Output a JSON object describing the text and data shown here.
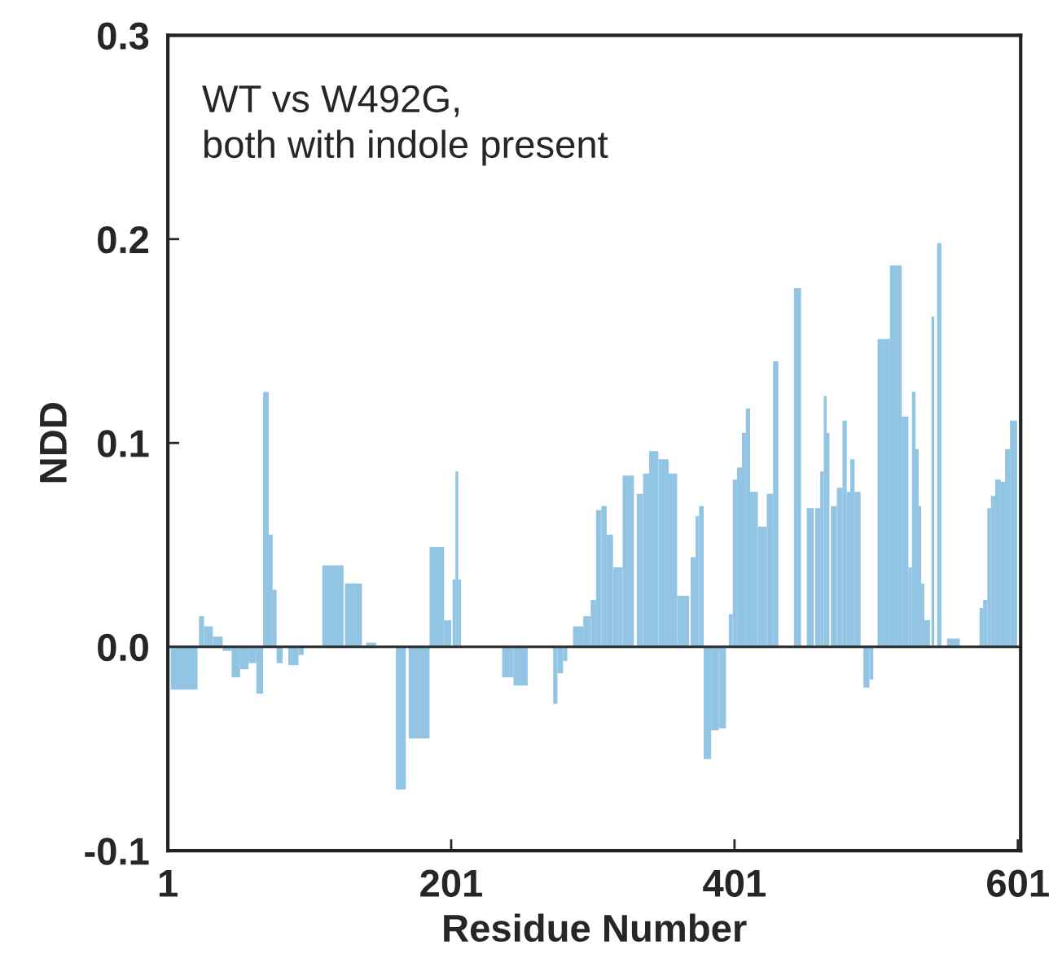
{
  "chart_data": {
    "type": "bar",
    "xlabel": "Residue Number",
    "ylabel": "NDD",
    "annotations": [
      "WT vs W492G,\nboth with indole present"
    ],
    "series": [
      {
        "color": "#92c5e3",
        "x": [
          12.5,
          22,
          23,
          24,
          29,
          36.5,
          43,
          49,
          55,
          61,
          66,
          70.5,
          74,
          76,
          79.5,
          82,
          86,
          90.5,
          96,
          97,
          110,
          117.5,
          125,
          126,
          132,
          138,
          141,
          144.5,
          148,
          162,
          165.5,
          169,
          171,
          179,
          192.5,
          199.5,
          201,
          202,
          203,
          205,
          207,
          208,
          237,
          240.5,
          249.5,
          255,
          273,
          274,
          278,
          282,
          283,
          287,
          291,
          297.5,
          301.5,
          305,
          309,
          312.5,
          318,
          326,
          330,
          332,
          334.5,
          338.5,
          343,
          351.5,
          357.5,
          363.5,
          369,
          370,
          372,
          375,
          377,
          381.5,
          387.5,
          392.5,
          395,
          397,
          398.5,
          401,
          404.5,
          408,
          410,
          414,
          421,
          426.5,
          430,
          432,
          443,
          445.5,
          448,
          452,
          454.5,
          457,
          458,
          460,
          463,
          465,
          467,
          468,
          469,
          471,
          475.5,
          479,
          481.5,
          484,
          487.5,
          490,
          492,
          494.5,
          498,
          499,
          502,
          506,
          515.5,
          522.5,
          525,
          527.5,
          530,
          532,
          533.5,
          536.5,
          539,
          540,
          541,
          542,
          544,
          545.5,
          547,
          551,
          555.5,
          560,
          574,
          575,
          578,
          581,
          583,
          587,
          591,
          593,
          598
        ],
        "values": [
          -0.021,
          null,
          null,
          0.015,
          0.01,
          0.005,
          -0.002,
          -0.015,
          -0.011,
          -0.008,
          -0.023,
          0.125,
          0.055,
          0.028,
          -0.008,
          null,
          null,
          -0.009,
          -0.004,
          null,
          null,
          0.04,
          null,
          null,
          0.031,
          null,
          null,
          0.002,
          null,
          null,
          -0.07,
          null,
          null,
          -0.045,
          0.049,
          0.013,
          null,
          null,
          0.033,
          0.086,
          0.033,
          null,
          null,
          -0.015,
          -0.019,
          null,
          null,
          -0.028,
          -0.013,
          -0.007,
          null,
          null,
          0.01,
          0.015,
          0.023,
          0.067,
          0.069,
          0.055,
          0.039,
          0.084,
          null,
          null,
          0.075,
          0.085,
          0.096,
          0.092,
          0.085,
          0.025,
          null,
          null,
          0.044,
          0.064,
          0.069,
          -0.055,
          -0.041,
          -0.04,
          null,
          null,
          0.016,
          0.082,
          0.088,
          0.105,
          0.117,
          0.076,
          0.059,
          0.075,
          0.14,
          null,
          null,
          0.176,
          null,
          null,
          0.068,
          null,
          null,
          0.068,
          0.086,
          0.123,
          0.105,
          null,
          null,
          0.069,
          0.078,
          0.111,
          0.076,
          0.092,
          0.076,
          null,
          null,
          -0.02,
          -0.016,
          null,
          null,
          0.151,
          0.187,
          0.113,
          0.039,
          0.125,
          0.097,
          0.069,
          0.031,
          0.013,
          null,
          null,
          0.162,
          null,
          null,
          0.198,
          null,
          null,
          0.004,
          null,
          null,
          0.019,
          0.023,
          0.068,
          0.074,
          0.082,
          0.081,
          0.097,
          0.111
        ]
      }
    ],
    "xlim": [
      1,
      603
    ],
    "xticks": [
      1,
      201,
      401,
      601
    ],
    "ylim": [
      -0.1,
      0.3
    ],
    "yticks": [
      {
        "value": 0.3,
        "label": "0.3"
      },
      {
        "value": 0.2,
        "label": "0.2"
      },
      {
        "value": 0.1,
        "label": "0.1"
      },
      {
        "value": 0,
        "label": "0.0"
      },
      {
        "value": -0.1,
        "label": "-0.1"
      }
    ],
    "ref_lines": [
      {
        "axis": "y",
        "value": 0,
        "color": "#333333"
      }
    ],
    "grid": false,
    "legend": false
  }
}
